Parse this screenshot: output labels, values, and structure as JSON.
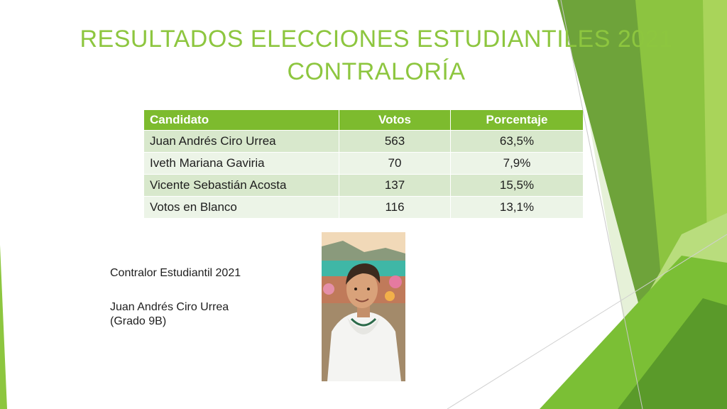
{
  "title": {
    "line1": "RESULTADOS ELECCIONES ESTUDIANTILES 2021",
    "line2": "CONTRALORÍA"
  },
  "table": {
    "headers": [
      "Candidato",
      "Votos",
      "Porcentaje"
    ],
    "rows": [
      {
        "candidate": "Juan Andrés Ciro Urrea",
        "votes": "563",
        "percent": "63,5%"
      },
      {
        "candidate": "Iveth Mariana Gaviria",
        "votes": "70",
        "percent": "7,9%"
      },
      {
        "candidate": "Vicente Sebastián Acosta",
        "votes": "137",
        "percent": "15,5%"
      },
      {
        "candidate": "Votos en Blanco",
        "votes": "116",
        "percent": "13,1%"
      }
    ]
  },
  "caption": {
    "role": "Contralor Estudiantil 2021",
    "name": "Juan Andrés Ciro Urrea",
    "grade": "(Grado 9B)"
  },
  "colors": {
    "title": "#8dc63f",
    "header_bg": "#7dbb2e",
    "row_dark": "#d8e8cc",
    "row_light": "#ecf4e7"
  }
}
